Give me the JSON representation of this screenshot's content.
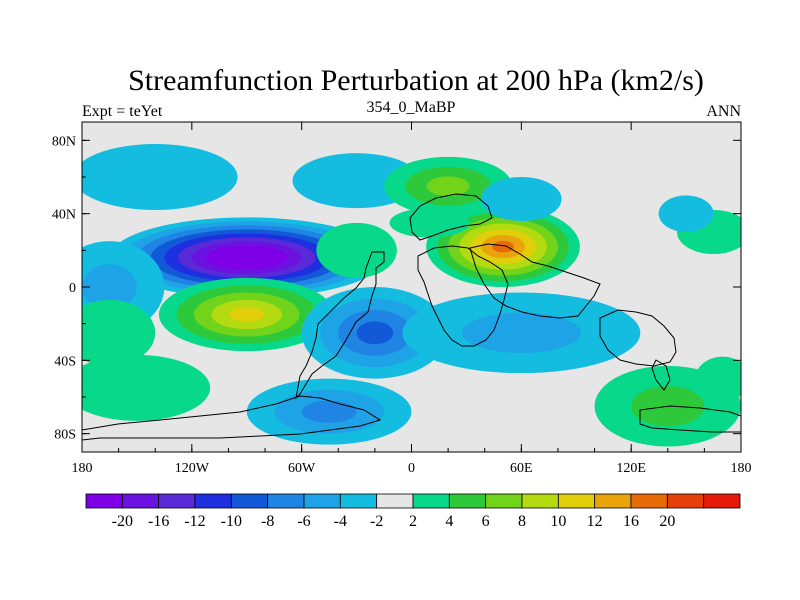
{
  "chart_data": {
    "type": "heatmap",
    "title": "Streamfunction Perturbation at 200 hPa (km2/s)",
    "left_string": "Expt = teYet",
    "center_string": "354_0_MaBP",
    "right_string": "ANN",
    "xlim": [
      -180,
      180
    ],
    "ylim": [
      -90,
      90
    ],
    "x_ticks": [
      {
        "value": -180,
        "label": "180"
      },
      {
        "value": -120,
        "label": "120W"
      },
      {
        "value": -60,
        "label": "60W"
      },
      {
        "value": 0,
        "label": "0"
      },
      {
        "value": 60,
        "label": "60E"
      },
      {
        "value": 120,
        "label": "120E"
      },
      {
        "value": 180,
        "label": "180"
      }
    ],
    "y_ticks": [
      {
        "value": 80,
        "label": "80N"
      },
      {
        "value": 40,
        "label": "40N"
      },
      {
        "value": 0,
        "label": "0"
      },
      {
        "value": -40,
        "label": "40S"
      },
      {
        "value": -80,
        "label": "80S"
      }
    ],
    "colorbar": {
      "labels": [
        "-20",
        "-16",
        "-12",
        "-10",
        "-8",
        "-6",
        "-4",
        "-2",
        "2",
        "4",
        "6",
        "8",
        "10",
        "12",
        "16",
        "20"
      ],
      "colors": [
        "#7f00e6",
        "#6a12e0",
        "#5a2ad8",
        "#1e2fe0",
        "#1259d8",
        "#1f84e3",
        "#1ea4e6",
        "#14bde0",
        "#e6e6e6",
        "#07d88a",
        "#2ec93b",
        "#72d41a",
        "#b4db12",
        "#e0cf0a",
        "#e8a40a",
        "#e66a08",
        "#e6400a",
        "#e61a0a"
      ]
    },
    "blobs": [
      {
        "lon": -90,
        "lat": 16,
        "rlon": 75,
        "rlat": 22,
        "value": -21
      },
      {
        "lon": -165,
        "lat": 0,
        "rlon": 30,
        "rlat": 25,
        "value": -5
      },
      {
        "lon": -140,
        "lat": 60,
        "rlon": 45,
        "rlat": 18,
        "value": -3
      },
      {
        "lon": -30,
        "lat": 58,
        "rlon": 35,
        "rlat": 15,
        "value": -3
      },
      {
        "lon": -90,
        "lat": -15,
        "rlon": 48,
        "rlat": 20,
        "value": 11
      },
      {
        "lon": -165,
        "lat": -25,
        "rlon": 25,
        "rlat": 18,
        "value": 3
      },
      {
        "lon": -150,
        "lat": -55,
        "rlon": 40,
        "rlat": 18,
        "value": 3
      },
      {
        "lon": -30,
        "lat": 20,
        "rlon": 22,
        "rlat": 15,
        "value": 3
      },
      {
        "lon": 50,
        "lat": 22,
        "rlon": 42,
        "rlat": 22,
        "value": 16
      },
      {
        "lon": 20,
        "lat": 55,
        "rlon": 35,
        "rlat": 16,
        "value": 6
      },
      {
        "lon": 10,
        "lat": 35,
        "rlon": 22,
        "rlat": 8,
        "value": 3
      },
      {
        "lon": 60,
        "lat": 48,
        "rlon": 22,
        "rlat": 12,
        "value": -3
      },
      {
        "lon": -20,
        "lat": -25,
        "rlon": 40,
        "rlat": 25,
        "value": -9
      },
      {
        "lon": 60,
        "lat": -25,
        "rlon": 65,
        "rlat": 22,
        "value": -4
      },
      {
        "lon": -45,
        "lat": -68,
        "rlon": 45,
        "rlat": 18,
        "value": -7
      },
      {
        "lon": 140,
        "lat": -65,
        "rlon": 40,
        "rlat": 22,
        "value": 5
      },
      {
        "lon": 165,
        "lat": 30,
        "rlon": 20,
        "rlat": 12,
        "value": 3
      },
      {
        "lon": 150,
        "lat": 40,
        "rlon": 15,
        "rlat": 10,
        "value": -3
      },
      {
        "lon": 170,
        "lat": -50,
        "rlon": 15,
        "rlat": 12,
        "value": 3
      }
    ]
  }
}
